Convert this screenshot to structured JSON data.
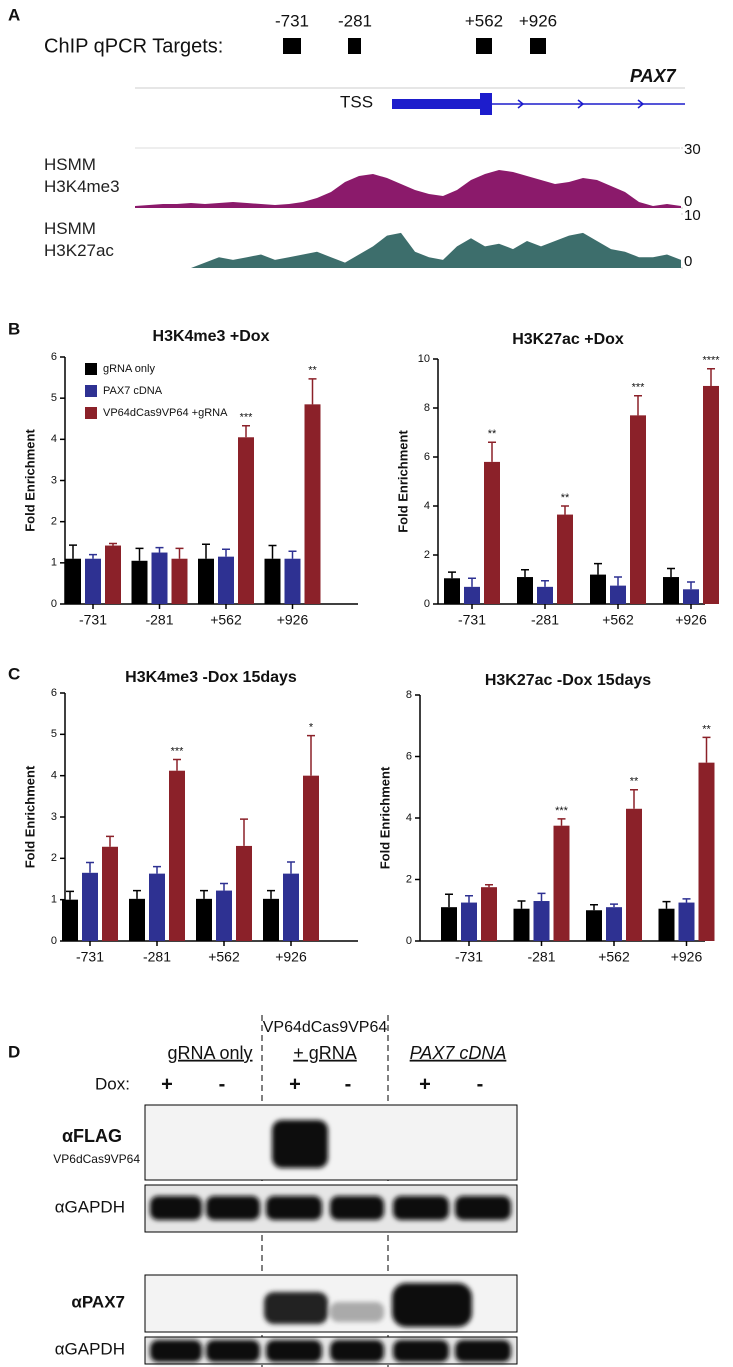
{
  "panel_labels": [
    "A",
    "B",
    "C",
    "D"
  ],
  "browser": {
    "targets_label": "ChIP qPCR Targets:",
    "targets": [
      "-731",
      "-281",
      "+562",
      "+926"
    ],
    "gene": "PAX7",
    "tss": "TSS"
  },
  "chart_data": [
    {
      "type": "area",
      "title": "HSMM H3K4me3",
      "color": "#8b1a6b",
      "ylim": [
        0,
        30
      ],
      "yticks": [
        0,
        30
      ],
      "values": [
        1,
        1.5,
        2,
        2,
        2.5,
        2,
        2.5,
        3,
        2.5,
        2,
        1.5,
        2,
        3,
        5,
        8,
        13,
        16,
        17,
        15,
        12,
        9,
        7,
        6,
        9,
        14,
        17,
        19,
        18,
        16,
        14,
        12,
        13,
        15,
        14,
        11,
        8,
        3,
        1,
        2,
        1
      ]
    },
    {
      "type": "area",
      "title": "HSMM H3K27ac",
      "color": "#3d6e6c",
      "ylim": [
        0,
        10
      ],
      "yticks": [
        0,
        10
      ],
      "values": [
        0,
        0,
        0,
        0,
        0,
        1,
        2,
        1.5,
        2,
        2.5,
        1.5,
        2,
        2.5,
        3,
        2,
        1,
        2.5,
        4,
        6,
        6.5,
        3,
        2,
        1.5,
        4,
        5.5,
        4,
        4.5,
        3.5,
        5,
        4,
        5,
        6,
        6.5,
        5,
        3.5,
        3,
        2,
        2,
        2.5,
        1.5
      ]
    },
    {
      "type": "bar",
      "title": "H3K4me3 +Dox",
      "y_label": "Fold Enrichment",
      "categories": [
        "-731",
        "-281",
        "+562",
        "+926"
      ],
      "ylim": [
        0,
        6
      ],
      "yticks": [
        0,
        1,
        2,
        3,
        4,
        5,
        6
      ],
      "series": [
        {
          "name": "gRNA only",
          "color": "#000000",
          "values": [
            1.1,
            1.05,
            1.1,
            1.1
          ],
          "errors": [
            0.33,
            0.3,
            0.35,
            0.32
          ]
        },
        {
          "name": "PAX7 cDNA",
          "color": "#2e3192",
          "values": [
            1.1,
            1.25,
            1.15,
            1.1
          ],
          "errors": [
            0.1,
            0.12,
            0.18,
            0.18
          ]
        },
        {
          "name": "VP64dCas9VP64 +gRNA",
          "color": "#8b2129",
          "values": [
            1.42,
            1.1,
            4.05,
            4.85
          ],
          "errors": [
            0.05,
            0.25,
            0.28,
            0.62
          ],
          "annotations": [
            null,
            null,
            "***",
            "**"
          ]
        }
      ]
    },
    {
      "type": "bar",
      "title": "H3K27ac +Dox",
      "y_label": "Fold Enrichment",
      "categories": [
        "-731",
        "-281",
        "+562",
        "+926"
      ],
      "ylim": [
        0,
        10
      ],
      "yticks": [
        0,
        2,
        4,
        6,
        8,
        10
      ],
      "series": [
        {
          "color": "#000000",
          "values": [
            1.05,
            1.1,
            1.2,
            1.1
          ],
          "errors": [
            0.25,
            0.3,
            0.45,
            0.35
          ]
        },
        {
          "color": "#2e3192",
          "values": [
            0.7,
            0.7,
            0.75,
            0.6
          ],
          "errors": [
            0.35,
            0.25,
            0.35,
            0.3
          ]
        },
        {
          "color": "#8b2129",
          "values": [
            5.8,
            3.65,
            7.7,
            8.9
          ],
          "errors": [
            0.8,
            0.35,
            0.8,
            0.7
          ],
          "annotations": [
            "**",
            "**",
            "***",
            "****"
          ]
        }
      ]
    },
    {
      "type": "bar",
      "title": "H3K4me3 -Dox 15days",
      "y_label": "Fold Enrichment",
      "categories": [
        "-731",
        "-281",
        "+562",
        "+926"
      ],
      "ylim": [
        0,
        6
      ],
      "yticks": [
        0,
        1,
        2,
        3,
        4,
        5,
        6
      ],
      "series": [
        {
          "color": "#000000",
          "values": [
            1.0,
            1.02,
            1.02,
            1.02
          ],
          "errors": [
            0.2,
            0.2,
            0.2,
            0.2
          ]
        },
        {
          "color": "#2e3192",
          "values": [
            1.65,
            1.63,
            1.22,
            1.63
          ],
          "errors": [
            0.25,
            0.17,
            0.17,
            0.28
          ]
        },
        {
          "color": "#8b2129",
          "values": [
            2.28,
            4.12,
            2.3,
            4.0
          ],
          "errors": [
            0.25,
            0.27,
            0.65,
            0.97
          ],
          "annotations": [
            null,
            "***",
            null,
            "*"
          ]
        }
      ]
    },
    {
      "type": "bar",
      "title": "H3K27ac -Dox 15days",
      "y_label": "Fold Enrichment",
      "categories": [
        "-731",
        "-281",
        "+562",
        "+926"
      ],
      "ylim": [
        0,
        8
      ],
      "yticks": [
        0,
        2,
        4,
        6,
        8
      ],
      "series": [
        {
          "color": "#000000",
          "values": [
            1.1,
            1.05,
            1.0,
            1.05
          ],
          "errors": [
            0.42,
            0.25,
            0.18,
            0.23
          ]
        },
        {
          "color": "#2e3192",
          "values": [
            1.25,
            1.3,
            1.1,
            1.25
          ],
          "errors": [
            0.22,
            0.25,
            0.1,
            0.12
          ]
        },
        {
          "color": "#8b2129",
          "values": [
            1.75,
            3.75,
            4.3,
            5.8
          ],
          "errors": [
            0.08,
            0.22,
            0.62,
            0.82
          ],
          "annotations": [
            null,
            "***",
            "**",
            "**"
          ]
        }
      ]
    }
  ],
  "blot": {
    "groups": [
      "gRNA only",
      "VP64dCas9VP64",
      "+ gRNA",
      "PAX7 cDNA"
    ],
    "dox_label": "Dox:",
    "dox": [
      "+",
      "-",
      "+",
      "-",
      "+",
      "-"
    ],
    "rows": [
      "αFLAG",
      "VP6dCas9VP64",
      "αGAPDH",
      "αPAX7",
      "αGAPDH"
    ]
  }
}
